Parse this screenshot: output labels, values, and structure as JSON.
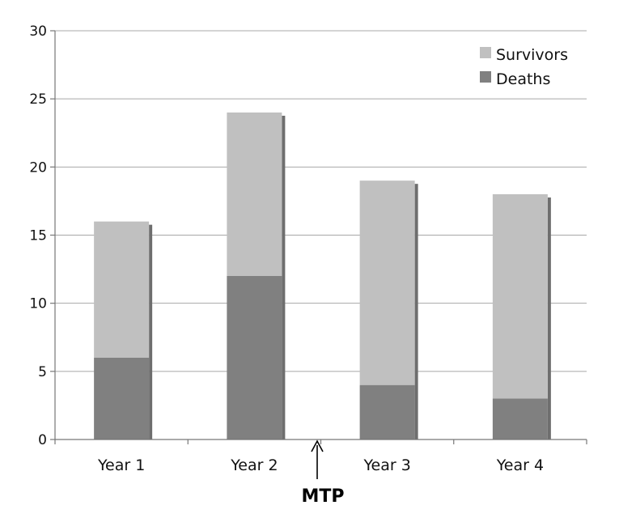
{
  "chart_data": {
    "type": "bar",
    "stacked": true,
    "categories": [
      "Year 1",
      "Year 2",
      "Year 3",
      "Year 4"
    ],
    "series": [
      {
        "name": "Deaths",
        "values": [
          6,
          12,
          4,
          3
        ],
        "color": "#808080"
      },
      {
        "name": "Survivors",
        "values": [
          10,
          12,
          15,
          15
        ],
        "color": "#c0c0c0"
      }
    ],
    "ylim": [
      0,
      30
    ],
    "yticks": [
      0,
      5,
      10,
      15,
      20,
      25,
      30
    ],
    "grid": true,
    "legend_position": "top-right",
    "annotation": {
      "text": "MTP",
      "between": [
        "Year 2",
        "Year 3"
      ]
    }
  }
}
